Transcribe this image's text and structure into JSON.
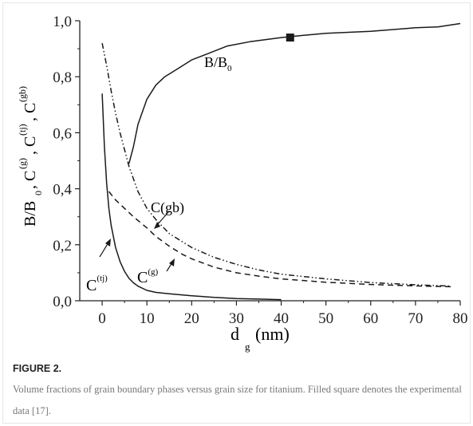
{
  "figure": {
    "label": "FIGURE 2.",
    "caption": "Volume fractions of grain boundary phases versus grain size for titanium. Filled square denotes the experimental data [17]."
  },
  "chart_data": {
    "type": "line",
    "xlim": [
      -5,
      80
    ],
    "ylim": [
      0,
      1.0
    ],
    "xticks": [
      0,
      10,
      20,
      30,
      40,
      50,
      60,
      70,
      80
    ],
    "yticks": [
      "0,0",
      "0,2",
      "0,4",
      "0,6",
      "0,8",
      "1,0"
    ],
    "grid": false,
    "series": [
      {
        "name": "B/B0",
        "style": "solid",
        "x": [
          6,
          7,
          8,
          10,
          12,
          14,
          17,
          20,
          24,
          28,
          33,
          40,
          45,
          50,
          60,
          70,
          75,
          80
        ],
        "y": [
          0.49,
          0.55,
          0.63,
          0.72,
          0.77,
          0.8,
          0.83,
          0.86,
          0.885,
          0.91,
          0.925,
          0.94,
          0.948,
          0.955,
          0.962,
          0.975,
          0.978,
          0.99
        ]
      },
      {
        "name": "C(gb)",
        "style": "dash-dot-dot",
        "x": [
          0,
          1,
          2,
          3,
          4,
          5,
          6,
          8,
          10,
          12,
          15,
          18,
          20,
          25,
          30,
          35,
          40,
          50,
          60,
          70,
          78
        ],
        "y": [
          0.92,
          0.84,
          0.75,
          0.67,
          0.6,
          0.54,
          0.48,
          0.39,
          0.33,
          0.29,
          0.24,
          0.21,
          0.19,
          0.155,
          0.13,
          0.11,
          0.095,
          0.078,
          0.065,
          0.057,
          0.052
        ]
      },
      {
        "name": "C(g)",
        "style": "dashed",
        "x": [
          1.5,
          3,
          5,
          7,
          10,
          12,
          15,
          18,
          20,
          25,
          30,
          35,
          40,
          50,
          60,
          70,
          78
        ],
        "y": [
          0.39,
          0.36,
          0.33,
          0.3,
          0.26,
          0.23,
          0.195,
          0.165,
          0.15,
          0.12,
          0.1,
          0.088,
          0.078,
          0.066,
          0.058,
          0.053,
          0.05
        ]
      },
      {
        "name": "C(tj)",
        "style": "solid",
        "x": [
          0,
          0.5,
          1,
          1.5,
          2,
          3,
          4,
          5,
          6,
          7,
          8,
          10,
          12,
          15,
          20,
          25,
          30,
          35,
          40
        ],
        "y": [
          0.74,
          0.55,
          0.42,
          0.33,
          0.27,
          0.19,
          0.14,
          0.105,
          0.08,
          0.064,
          0.052,
          0.037,
          0.03,
          0.025,
          0.018,
          0.012,
          0.008,
          0.006,
          0.004
        ]
      }
    ],
    "experimental_point": {
      "x": 42,
      "y": 0.94,
      "marker": "filled-square"
    },
    "annotations": {
      "b_label": "B/B",
      "b_sub": "0",
      "cgb_label": "C(gb)",
      "cg_label": "C",
      "cg_sup": "(g)",
      "ctj_label": "C",
      "ctj_sup": "(tj)"
    },
    "xlabel": {
      "main": "d",
      "sub": "g",
      "unit": "(nm)"
    },
    "ylabel": "B/B0, C(g), C(tj), C(gb)",
    "colors": {
      "line": "#1a1a1a",
      "axis": "#222222"
    }
  }
}
